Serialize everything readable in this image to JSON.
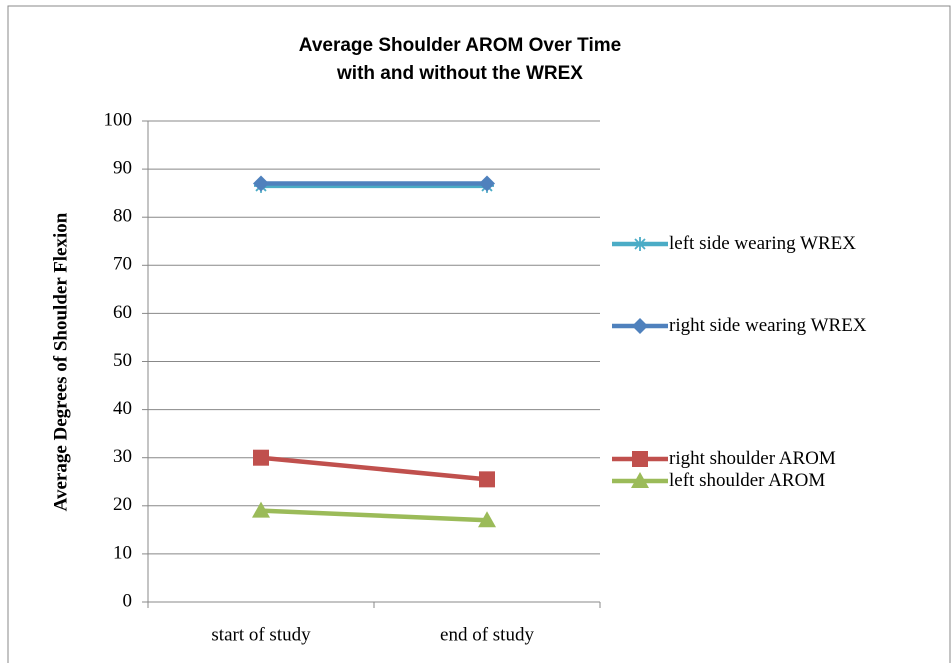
{
  "chart_data": {
    "type": "line",
    "title": "Average Shoulder AROM Over Time\nwith and without the WREX",
    "y_label": "Average Degrees of Shoulder Flexion",
    "categories": [
      "start of study",
      "end of study"
    ],
    "series": [
      {
        "name": "left side wearing WREX",
        "color": "#4bacc6",
        "marker": "asterisk",
        "values": [
          86.5,
          86.5
        ]
      },
      {
        "name": "right side wearing WREX",
        "color": "#4f81bd",
        "marker": "diamond",
        "values": [
          87,
          87
        ]
      },
      {
        "name": "right shoulder AROM",
        "color": "#c0504d",
        "marker": "square",
        "values": [
          30,
          25.5
        ]
      },
      {
        "name": "left shoulder AROM",
        "color": "#9bbb59",
        "marker": "triangle",
        "values": [
          19,
          17
        ]
      }
    ],
    "ylim": [
      0,
      100
    ],
    "yticks": [
      0,
      10,
      20,
      30,
      40,
      50,
      60,
      70,
      80,
      90,
      100
    ],
    "grid": true,
    "legend": "right"
  }
}
